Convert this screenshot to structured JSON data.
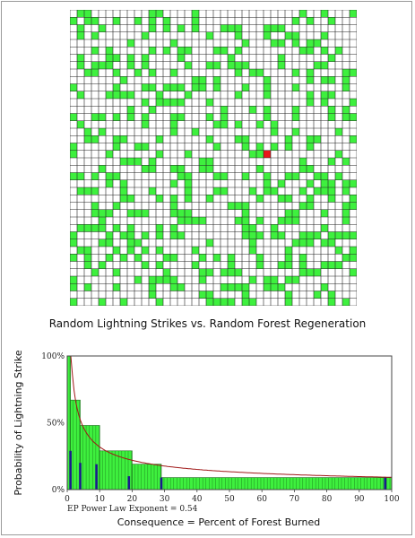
{
  "grid": {
    "caption": "Random Lightning Strikes  vs. Random Forest Regeneration",
    "rows": 40,
    "cols": 40,
    "colors": {
      "tree": "#3ef03e",
      "empty": "#ffffff",
      "burning": "#e8161a",
      "line": "#222222"
    },
    "tree_fraction": 0.28,
    "seed": 1234567,
    "burning_cell": {
      "row": 19,
      "col": 27
    }
  },
  "chart_data": {
    "type": "bar",
    "title": "",
    "ylabel": "Probability of Lightning Strike",
    "xlabel": "Consequence = Percent of Forest Burned",
    "annotation": "EP Power Law Exponent = 0.54",
    "xlim": [
      0,
      100
    ],
    "ylim": [
      0,
      100
    ],
    "x_ticks": [
      "0",
      "10",
      "20",
      "30",
      "40",
      "50",
      "60",
      "70",
      "80",
      "90",
      "100"
    ],
    "y_ticks": [
      "0%",
      "50%",
      "100%"
    ],
    "steps": [
      {
        "x0": 0,
        "x1": 1,
        "y": 100
      },
      {
        "x0": 1,
        "x1": 4,
        "y": 67
      },
      {
        "x0": 4,
        "x1": 10,
        "y": 48
      },
      {
        "x0": 10,
        "x1": 20,
        "y": 29
      },
      {
        "x0": 20,
        "x1": 29,
        "y": 19
      },
      {
        "x0": 29,
        "x1": 100,
        "y": 9
      }
    ],
    "impulses": [
      {
        "x": 1,
        "y": 29
      },
      {
        "x": 4,
        "y": 20
      },
      {
        "x": 9,
        "y": 19
      },
      {
        "x": 19,
        "y": 10
      },
      {
        "x": 29,
        "y": 9
      },
      {
        "x": 98,
        "y": 9
      }
    ],
    "fit_curve": {
      "a": 9.2,
      "exponent": 0.54
    },
    "colors": {
      "fill": "#3ef03e",
      "impulse": "#1a1a8c",
      "curve": "#a01818",
      "border": "#444444"
    }
  }
}
